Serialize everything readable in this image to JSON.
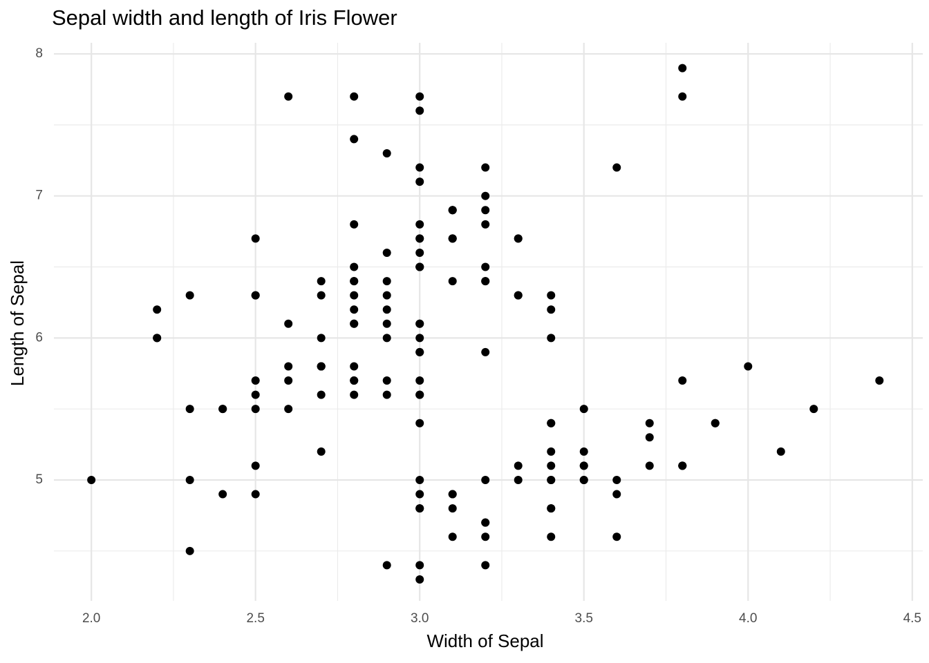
{
  "chart_data": {
    "type": "scatter",
    "title": "Sepal width and length of Iris Flower",
    "x_label": "Width of Sepal",
    "y_label": "Length of Sepal",
    "color": "#000000",
    "grid": true,
    "xlim": [
      1.886,
      4.532
    ],
    "ylim": [
      4.149,
      8.078
    ],
    "xticks": [
      {
        "value": 2.0,
        "label": "2.0"
      },
      {
        "value": 2.5,
        "label": "2.5"
      },
      {
        "value": 3.0,
        "label": "3.0"
      },
      {
        "value": 3.5,
        "label": "3.5"
      },
      {
        "value": 4.0,
        "label": "4.0"
      },
      {
        "value": 4.5,
        "label": "4.5"
      }
    ],
    "yticks": [
      5,
      6,
      7,
      8
    ],
    "x": [
      3.5,
      3.0,
      3.2,
      3.1,
      3.6,
      3.9,
      3.4,
      3.4,
      2.9,
      3.1,
      3.7,
      3.4,
      3.0,
      3.0,
      4.0,
      4.4,
      3.9,
      3.5,
      3.8,
      3.8,
      3.4,
      3.7,
      3.6,
      3.3,
      3.4,
      3.0,
      3.4,
      3.5,
      3.4,
      3.2,
      3.1,
      3.4,
      4.1,
      4.2,
      3.1,
      3.2,
      3.5,
      3.6,
      3.0,
      3.4,
      3.5,
      2.3,
      3.2,
      3.5,
      3.8,
      3.0,
      3.8,
      3.2,
      3.7,
      3.3,
      3.2,
      3.2,
      3.1,
      2.3,
      2.8,
      2.8,
      3.3,
      2.4,
      2.9,
      2.7,
      2.0,
      3.0,
      2.2,
      2.9,
      2.9,
      3.1,
      3.0,
      2.7,
      2.2,
      2.5,
      3.2,
      2.8,
      2.5,
      2.8,
      2.9,
      3.0,
      2.8,
      3.0,
      2.9,
      2.6,
      2.4,
      2.4,
      2.7,
      2.7,
      3.0,
      3.4,
      3.1,
      2.3,
      3.0,
      2.5,
      2.6,
      3.0,
      2.6,
      2.3,
      2.7,
      3.0,
      2.9,
      2.9,
      2.5,
      2.8,
      3.3,
      2.7,
      3.0,
      2.9,
      3.0,
      3.0,
      2.5,
      2.9,
      2.5,
      3.6,
      3.2,
      2.7,
      3.0,
      2.5,
      2.8,
      3.2,
      3.0,
      3.8,
      2.6,
      2.2,
      3.2,
      2.8,
      2.8,
      2.7,
      3.3,
      3.2,
      2.8,
      3.0,
      2.8,
      3.0,
      2.8,
      3.8,
      2.8,
      2.8,
      2.6,
      3.0,
      3.4,
      3.1,
      3.0,
      3.1,
      3.1,
      3.1,
      2.7,
      3.2,
      3.3,
      3.0,
      2.5,
      3.0,
      3.4,
      3.0
    ],
    "values": [
      5.1,
      4.9,
      4.7,
      4.6,
      5.0,
      5.4,
      4.6,
      5.0,
      4.4,
      4.9,
      5.4,
      4.8,
      4.8,
      4.3,
      5.8,
      5.7,
      5.4,
      5.1,
      5.7,
      5.1,
      5.4,
      5.1,
      4.6,
      5.1,
      4.8,
      5.0,
      5.0,
      5.2,
      5.2,
      4.7,
      4.8,
      5.4,
      5.2,
      5.5,
      4.9,
      5.0,
      5.5,
      4.9,
      4.4,
      5.1,
      5.0,
      4.5,
      4.4,
      5.0,
      5.1,
      4.8,
      5.1,
      4.6,
      5.3,
      5.0,
      7.0,
      6.4,
      6.9,
      5.5,
      6.5,
      5.7,
      6.3,
      4.9,
      6.6,
      5.2,
      5.0,
      5.9,
      6.0,
      6.1,
      5.6,
      6.7,
      5.6,
      5.8,
      6.2,
      5.6,
      5.9,
      6.1,
      6.3,
      6.1,
      6.4,
      6.6,
      6.8,
      6.7,
      6.0,
      5.7,
      5.5,
      5.5,
      5.8,
      6.0,
      5.4,
      6.0,
      6.7,
      6.3,
      5.6,
      5.5,
      5.5,
      6.1,
      5.8,
      5.0,
      5.6,
      5.7,
      5.7,
      6.2,
      5.1,
      5.7,
      6.3,
      5.8,
      7.1,
      6.3,
      6.5,
      7.6,
      4.9,
      7.3,
      6.7,
      7.2,
      6.5,
      6.4,
      6.8,
      5.7,
      5.8,
      6.4,
      6.5,
      7.7,
      7.7,
      6.0,
      6.9,
      5.6,
      7.7,
      6.3,
      6.7,
      7.2,
      6.2,
      6.1,
      6.4,
      7.2,
      7.4,
      7.9,
      6.4,
      6.3,
      6.1,
      7.7,
      6.3,
      6.4,
      6.0,
      6.9,
      6.7,
      6.9,
      5.8,
      6.8,
      6.7,
      6.7,
      6.3,
      6.5,
      6.2,
      5.9
    ]
  }
}
